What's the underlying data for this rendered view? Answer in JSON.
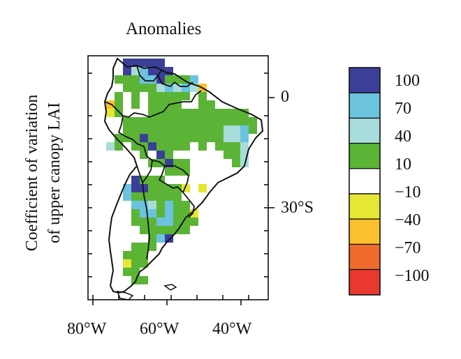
{
  "title": "Anomalies",
  "ylabel_line1": "Coefficient of variation",
  "ylabel_line2": "of upper canopy LAI",
  "x_ticks": [
    "80°W",
    "60°W",
    "40°W"
  ],
  "y_ticks": [
    "0",
    "30°S"
  ],
  "colorbar": {
    "labels": [
      "100",
      "70",
      "40",
      "10",
      "−10",
      "−40",
      "−70",
      "−100"
    ],
    "colors": [
      "#3b3f98",
      "#6bc3de",
      "#a8dcdb",
      "#5cb436",
      "#ffffff",
      "#e6e634",
      "#fbc02d",
      "#ef6b2b",
      "#e8382f"
    ]
  }
}
